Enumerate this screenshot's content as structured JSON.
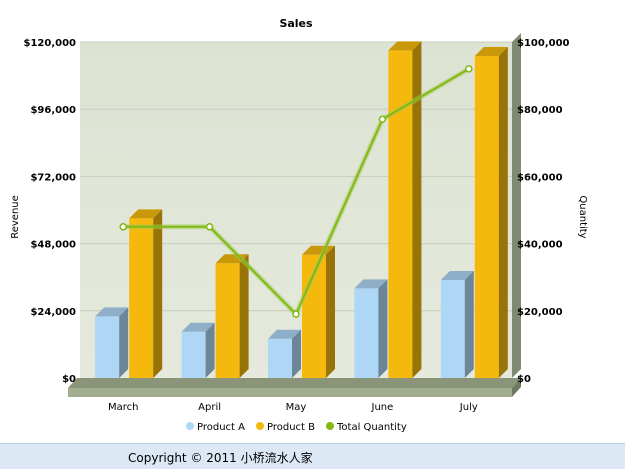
{
  "chart_data": {
    "type": "bar",
    "title": "Sales",
    "categories": [
      "March",
      "April",
      "May",
      "June",
      "July"
    ],
    "y_left": {
      "label": "Revenue",
      "range": [
        0,
        120000
      ],
      "ticks": [
        0,
        24000,
        48000,
        72000,
        96000,
        120000
      ],
      "tick_labels": [
        "$0",
        "$24,000",
        "$48,000",
        "$72,000",
        "$96,000",
        "$120,000"
      ]
    },
    "y_right": {
      "label": "Quantity",
      "range": [
        0,
        100000
      ],
      "ticks": [
        0,
        20000,
        40000,
        60000,
        80000,
        100000
      ],
      "tick_labels": [
        "$0",
        "$20,000",
        "$40,000",
        "$60,000",
        "$80,000",
        "$100,000"
      ]
    },
    "series": [
      {
        "name": "Product A",
        "type": "bar",
        "axis": "left",
        "color": "#aed6f5",
        "values": [
          22000,
          16500,
          14000,
          32000,
          35000
        ]
      },
      {
        "name": "Product B",
        "type": "bar",
        "axis": "left",
        "color": "#f5b90d",
        "values": [
          57000,
          41000,
          44000,
          117000,
          115000
        ]
      },
      {
        "name": "Total Quantity",
        "type": "line",
        "axis": "right",
        "color": "#80b814",
        "values": [
          45000,
          45000,
          19000,
          77000,
          92000
        ]
      }
    ],
    "legend": "bottom",
    "grid": true
  },
  "footer": {
    "copyright": "Copyright © 2011 小桥流水人家"
  }
}
